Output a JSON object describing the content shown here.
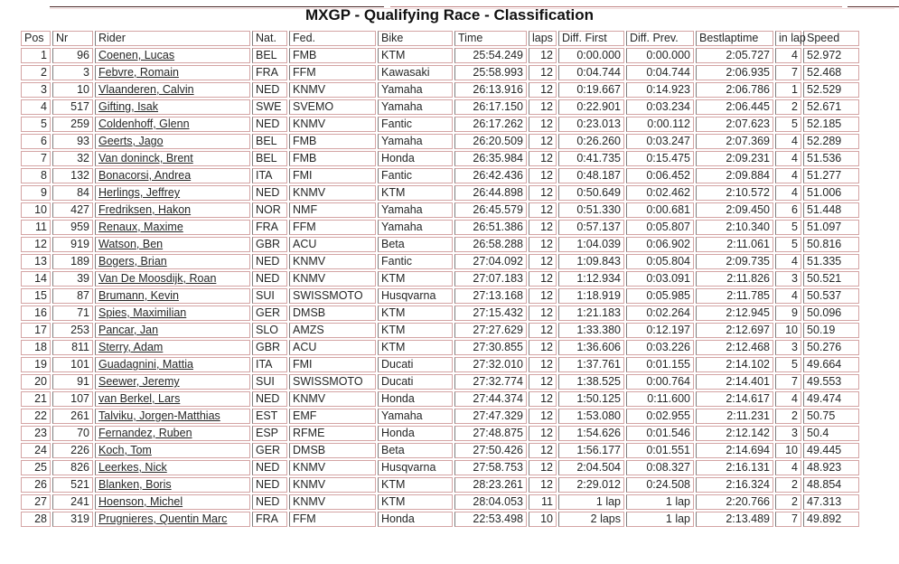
{
  "page": {
    "title": "MXGP - Qualifying Race - Classification"
  },
  "colors": {
    "cell_border": "#d4a4a4",
    "column_divider": "#7d7d7d",
    "text": "#262626"
  },
  "table": {
    "columns": [
      {
        "key": "pos",
        "label": "Pos",
        "align": "r"
      },
      {
        "key": "nr",
        "label": "Nr",
        "align": "r"
      },
      {
        "key": "rider",
        "label": "Rider",
        "align": "l"
      },
      {
        "key": "nat",
        "label": "Nat.",
        "align": "l"
      },
      {
        "key": "fed",
        "label": "Fed.",
        "align": "l"
      },
      {
        "key": "bike",
        "label": "Bike",
        "align": "l"
      },
      {
        "key": "time",
        "label": "Time",
        "align": "r"
      },
      {
        "key": "laps",
        "label": "laps",
        "align": "r"
      },
      {
        "key": "diff_first",
        "label": "Diff. First",
        "align": "r"
      },
      {
        "key": "diff_prev",
        "label": "Diff. Prev.",
        "align": "r"
      },
      {
        "key": "bestlaptime",
        "label": "Bestlaptime",
        "align": "r"
      },
      {
        "key": "in_lap",
        "label": "in lap",
        "align": "r"
      },
      {
        "key": "speed",
        "label": "Speed",
        "align": "l"
      }
    ],
    "rows": [
      [
        "1",
        "96",
        "Coenen, Lucas",
        "BEL",
        "FMB",
        "KTM",
        "25:54.249",
        "12",
        "0:00.000",
        "0:00.000",
        "2:05.727",
        "4",
        "52.972"
      ],
      [
        "2",
        "3",
        "Febvre, Romain",
        "FRA",
        "FFM",
        "Kawasaki",
        "25:58.993",
        "12",
        "0:04.744",
        "0:04.744",
        "2:06.935",
        "7",
        "52.468"
      ],
      [
        "3",
        "10",
        "Vlaanderen, Calvin",
        "NED",
        "KNMV",
        "Yamaha",
        "26:13.916",
        "12",
        "0:19.667",
        "0:14.923",
        "2:06.786",
        "1",
        "52.529"
      ],
      [
        "4",
        "517",
        "Gifting, Isak",
        "SWE",
        "SVEMO",
        "Yamaha",
        "26:17.150",
        "12",
        "0:22.901",
        "0:03.234",
        "2:06.445",
        "2",
        "52.671"
      ],
      [
        "5",
        "259",
        "Coldenhoff, Glenn",
        "NED",
        "KNMV",
        "Fantic",
        "26:17.262",
        "12",
        "0:23.013",
        "0:00.112",
        "2:07.623",
        "5",
        "52.185"
      ],
      [
        "6",
        "93",
        "Geerts, Jago",
        "BEL",
        "FMB",
        "Yamaha",
        "26:20.509",
        "12",
        "0:26.260",
        "0:03.247",
        "2:07.369",
        "4",
        "52.289"
      ],
      [
        "7",
        "32",
        "Van doninck, Brent",
        "BEL",
        "FMB",
        "Honda",
        "26:35.984",
        "12",
        "0:41.735",
        "0:15.475",
        "2:09.231",
        "4",
        "51.536"
      ],
      [
        "8",
        "132",
        "Bonacorsi, Andrea",
        "ITA",
        "FMI",
        "Fantic",
        "26:42.436",
        "12",
        "0:48.187",
        "0:06.452",
        "2:09.884",
        "4",
        "51.277"
      ],
      [
        "9",
        "84",
        "Herlings, Jeffrey",
        "NED",
        "KNMV",
        "KTM",
        "26:44.898",
        "12",
        "0:50.649",
        "0:02.462",
        "2:10.572",
        "4",
        "51.006"
      ],
      [
        "10",
        "427",
        "Fredriksen, Hakon",
        "NOR",
        "NMF",
        "Yamaha",
        "26:45.579",
        "12",
        "0:51.330",
        "0:00.681",
        "2:09.450",
        "6",
        "51.448"
      ],
      [
        "11",
        "959",
        "Renaux, Maxime",
        "FRA",
        "FFM",
        "Yamaha",
        "26:51.386",
        "12",
        "0:57.137",
        "0:05.807",
        "2:10.340",
        "5",
        "51.097"
      ],
      [
        "12",
        "919",
        "Watson, Ben",
        "GBR",
        "ACU",
        "Beta",
        "26:58.288",
        "12",
        "1:04.039",
        "0:06.902",
        "2:11.061",
        "5",
        "50.816"
      ],
      [
        "13",
        "189",
        "Bogers, Brian",
        "NED",
        "KNMV",
        "Fantic",
        "27:04.092",
        "12",
        "1:09.843",
        "0:05.804",
        "2:09.735",
        "4",
        "51.335"
      ],
      [
        "14",
        "39",
        "Van De Moosdijk, Roan",
        "NED",
        "KNMV",
        "KTM",
        "27:07.183",
        "12",
        "1:12.934",
        "0:03.091",
        "2:11.826",
        "3",
        "50.521"
      ],
      [
        "15",
        "87",
        "Brumann, Kevin",
        "SUI",
        "SWISSMOTO",
        "Husqvarna",
        "27:13.168",
        "12",
        "1:18.919",
        "0:05.985",
        "2:11.785",
        "4",
        "50.537"
      ],
      [
        "16",
        "71",
        "Spies, Maximilian",
        "GER",
        "DMSB",
        "KTM",
        "27:15.432",
        "12",
        "1:21.183",
        "0:02.264",
        "2:12.945",
        "9",
        "50.096"
      ],
      [
        "17",
        "253",
        "Pancar, Jan",
        "SLO",
        "AMZS",
        "KTM",
        "27:27.629",
        "12",
        "1:33.380",
        "0:12.197",
        "2:12.697",
        "10",
        "50.19"
      ],
      [
        "18",
        "811",
        "Sterry, Adam",
        "GBR",
        "ACU",
        "KTM",
        "27:30.855",
        "12",
        "1:36.606",
        "0:03.226",
        "2:12.468",
        "3",
        "50.276"
      ],
      [
        "19",
        "101",
        "Guadagnini, Mattia",
        "ITA",
        "FMI",
        "Ducati",
        "27:32.010",
        "12",
        "1:37.761",
        "0:01.155",
        "2:14.102",
        "5",
        "49.664"
      ],
      [
        "20",
        "91",
        "Seewer, Jeremy",
        "SUI",
        "SWISSMOTO",
        "Ducati",
        "27:32.774",
        "12",
        "1:38.525",
        "0:00.764",
        "2:14.401",
        "7",
        "49.553"
      ],
      [
        "21",
        "107",
        "van Berkel, Lars",
        "NED",
        "KNMV",
        "Honda",
        "27:44.374",
        "12",
        "1:50.125",
        "0:11.600",
        "2:14.617",
        "4",
        "49.474"
      ],
      [
        "22",
        "261",
        "Talviku, Jorgen-Matthias",
        "EST",
        "EMF",
        "Yamaha",
        "27:47.329",
        "12",
        "1:53.080",
        "0:02.955",
        "2:11.231",
        "2",
        "50.75"
      ],
      [
        "23",
        "70",
        "Fernandez, Ruben",
        "ESP",
        "RFME",
        "Honda",
        "27:48.875",
        "12",
        "1:54.626",
        "0:01.546",
        "2:12.142",
        "3",
        "50.4"
      ],
      [
        "24",
        "226",
        "Koch, Tom",
        "GER",
        "DMSB",
        "Beta",
        "27:50.426",
        "12",
        "1:56.177",
        "0:01.551",
        "2:14.694",
        "10",
        "49.445"
      ],
      [
        "25",
        "826",
        "Leerkes, Nick",
        "NED",
        "KNMV",
        "Husqvarna",
        "27:58.753",
        "12",
        "2:04.504",
        "0:08.327",
        "2:16.131",
        "4",
        "48.923"
      ],
      [
        "26",
        "521",
        "Blanken, Boris",
        "NED",
        "KNMV",
        "KTM",
        "28:23.261",
        "12",
        "2:29.012",
        "0:24.508",
        "2:16.324",
        "2",
        "48.854"
      ],
      [
        "27",
        "241",
        "Hoenson, Michel",
        "NED",
        "KNMV",
        "KTM",
        "28:04.053",
        "11",
        "1 lap",
        "1 lap",
        "2:20.766",
        "2",
        "47.313"
      ],
      [
        "28",
        "319",
        "Prugnieres, Quentin Marc",
        "FRA",
        "FFM",
        "Honda",
        "22:53.498",
        "10",
        "2 laps",
        "1 lap",
        "2:13.489",
        "7",
        "49.892"
      ]
    ]
  }
}
